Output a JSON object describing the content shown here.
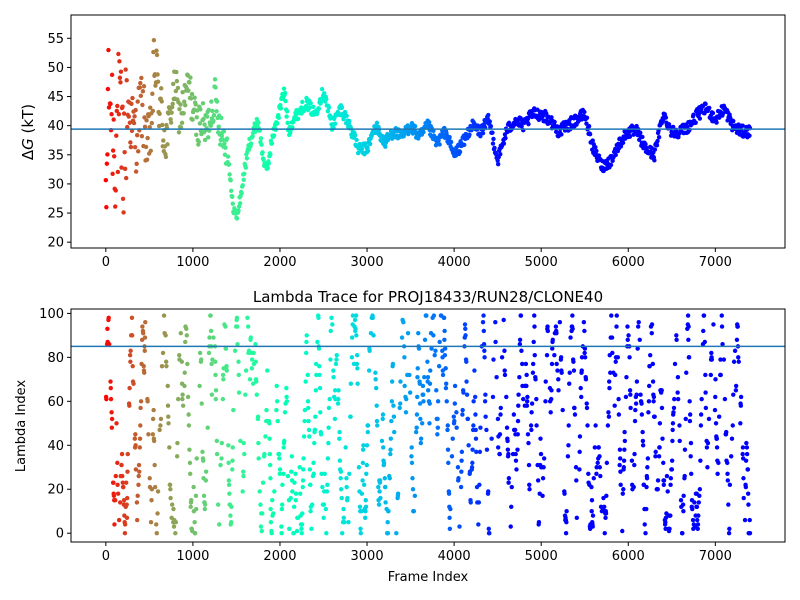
{
  "chart_data": [
    {
      "type": "scatter",
      "title": "",
      "xlabel": "",
      "ylabel_prefix": "Δ",
      "ylabel_var": "G",
      "ylabel_rest": " (kT)",
      "xlim": [
        -400,
        7800
      ],
      "ylim": [
        19,
        59
      ],
      "xticks": [
        0,
        1000,
        2000,
        3000,
        4000,
        5000,
        6000,
        7000
      ],
      "yticks": [
        20,
        25,
        30,
        35,
        40,
        45,
        50,
        55
      ],
      "hline": 39.4,
      "hline_color": "#1f77b4",
      "colormap": "rainbow",
      "grid": false,
      "x_max_frame": 7400,
      "series_profile": [
        [
          0,
          20
        ],
        [
          30,
          50
        ],
        [
          60,
          44
        ],
        [
          100,
          36
        ],
        [
          150,
          42
        ],
        [
          200,
          34
        ],
        [
          250,
          44
        ],
        [
          300,
          40
        ],
        [
          350,
          38
        ],
        [
          400,
          44
        ],
        [
          450,
          40
        ],
        [
          500,
          35
        ],
        [
          560,
          51
        ],
        [
          600,
          46
        ],
        [
          650,
          40
        ],
        [
          700,
          38
        ],
        [
          750,
          43
        ],
        [
          800,
          47
        ],
        [
          850,
          41
        ],
        [
          900,
          44
        ],
        [
          950,
          47
        ],
        [
          1000,
          43
        ],
        [
          1050,
          40
        ],
        [
          1100,
          41
        ],
        [
          1150,
          39
        ],
        [
          1200,
          42
        ],
        [
          1250,
          45
        ],
        [
          1300,
          41
        ],
        [
          1350,
          38
        ],
        [
          1400,
          36
        ],
        [
          1450,
          27
        ],
        [
          1500,
          24
        ],
        [
          1550,
          28
        ],
        [
          1600,
          33
        ],
        [
          1650,
          37
        ],
        [
          1700,
          39
        ],
        [
          1750,
          41
        ],
        [
          1800,
          35
        ],
        [
          1850,
          32
        ],
        [
          1900,
          37
        ],
        [
          1950,
          40
        ],
        [
          2000,
          43
        ],
        [
          2050,
          46
        ],
        [
          2100,
          39
        ],
        [
          2150,
          41
        ],
        [
          2200,
          42
        ],
        [
          2300,
          44
        ],
        [
          2400,
          42
        ],
        [
          2500,
          46
        ],
        [
          2600,
          40
        ],
        [
          2700,
          43
        ],
        [
          2800,
          40
        ],
        [
          2900,
          36
        ],
        [
          3000,
          36
        ],
        [
          3100,
          40
        ],
        [
          3200,
          37
        ],
        [
          3300,
          39
        ],
        [
          3400,
          38
        ],
        [
          3500,
          40
        ],
        [
          3600,
          38
        ],
        [
          3700,
          40
        ],
        [
          3800,
          37
        ],
        [
          3900,
          39
        ],
        [
          4000,
          35
        ],
        [
          4100,
          37
        ],
        [
          4200,
          40
        ],
        [
          4300,
          39
        ],
        [
          4400,
          41
        ],
        [
          4500,
          34
        ],
        [
          4600,
          39
        ],
        [
          4700,
          41
        ],
        [
          4800,
          40
        ],
        [
          4900,
          42
        ],
        [
          5000,
          42
        ],
        [
          5100,
          41
        ],
        [
          5200,
          39
        ],
        [
          5300,
          40
        ],
        [
          5400,
          41
        ],
        [
          5500,
          42
        ],
        [
          5600,
          36
        ],
        [
          5700,
          33
        ],
        [
          5800,
          34
        ],
        [
          5900,
          37
        ],
        [
          6000,
          39
        ],
        [
          6100,
          39
        ],
        [
          6200,
          36
        ],
        [
          6300,
          35
        ],
        [
          6400,
          42
        ],
        [
          6500,
          39
        ],
        [
          6600,
          39
        ],
        [
          6700,
          40
        ],
        [
          6800,
          42
        ],
        [
          6900,
          43
        ],
        [
          7000,
          41
        ],
        [
          7100,
          43
        ],
        [
          7200,
          40
        ],
        [
          7300,
          39
        ],
        [
          7400,
          39
        ]
      ]
    },
    {
      "type": "scatter",
      "title": "Lambda Trace for PROJ18433/RUN28/CLONE40",
      "xlabel": "Frame Index",
      "ylabel": "Lambda Index",
      "xlim": [
        -400,
        7800
      ],
      "ylim": [
        -4,
        102
      ],
      "xticks": [
        0,
        1000,
        2000,
        3000,
        4000,
        5000,
        6000,
        7000
      ],
      "yticks": [
        0,
        20,
        40,
        60,
        80,
        100
      ],
      "hline": 85,
      "hline_color": "#1f77b4",
      "colormap": "rainbow",
      "grid": false,
      "lambda_min": 0,
      "lambda_max": 99,
      "x_max_frame": 7400
    }
  ]
}
